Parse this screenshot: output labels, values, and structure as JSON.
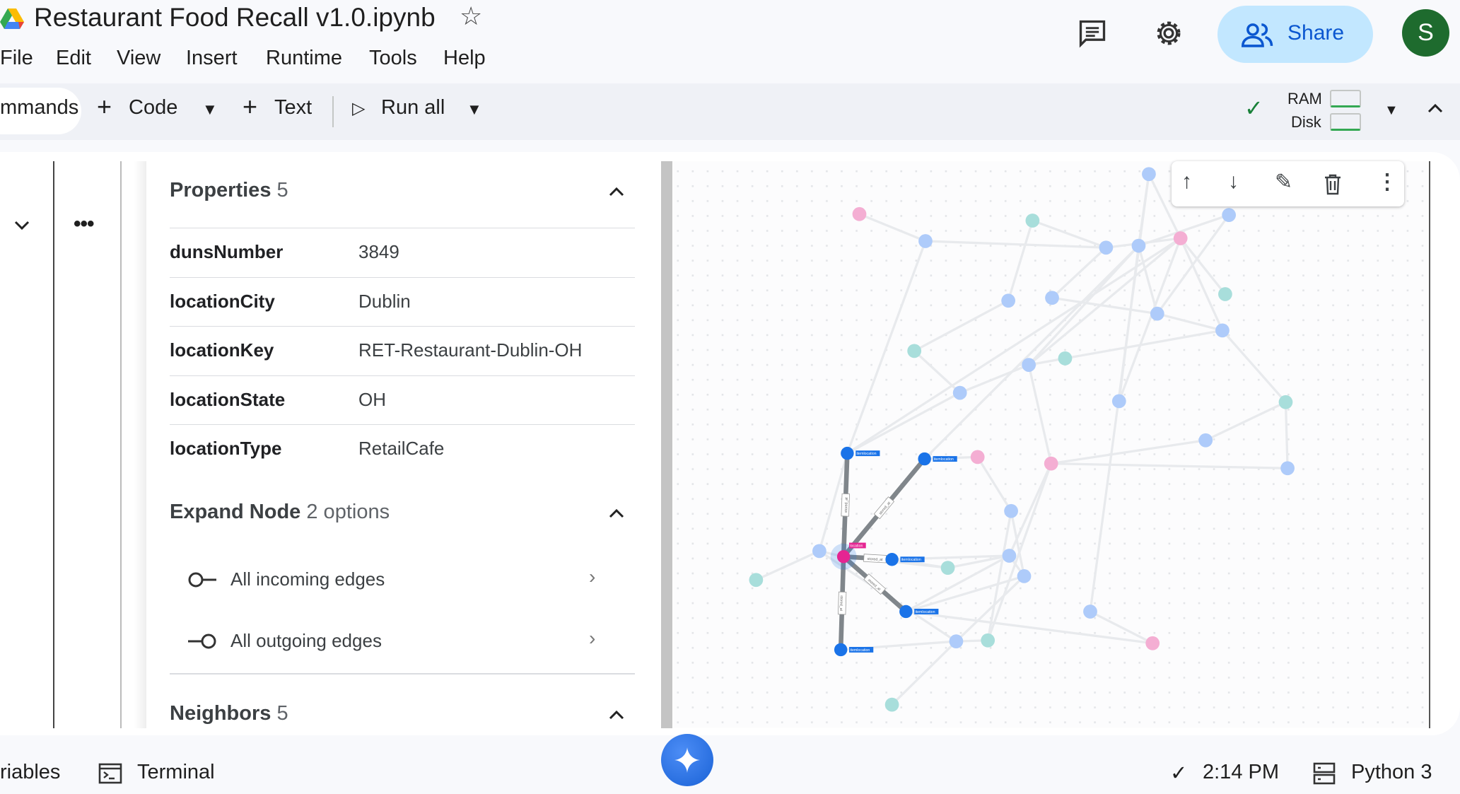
{
  "header": {
    "title": "Restaurant Food Recall v1.0.ipynb",
    "share_label": "Share",
    "avatar_letter": "S"
  },
  "menu": [
    "File",
    "Edit",
    "View",
    "Insert",
    "Runtime",
    "Tools",
    "Help"
  ],
  "toolbar": {
    "commands_label": "mmands",
    "code_label": "Code",
    "text_label": "Text",
    "run_all_label": "Run all",
    "ram_label": "RAM",
    "disk_label": "Disk"
  },
  "properties": {
    "title": "Properties",
    "count": "5",
    "rows": [
      {
        "key": "dunsNumber",
        "value": "3849"
      },
      {
        "key": "locationCity",
        "value": "Dublin"
      },
      {
        "key": "locationKey",
        "value": "RET-Restaurant-Dublin-OH"
      },
      {
        "key": "locationState",
        "value": "OH"
      },
      {
        "key": "locationType",
        "value": "RetailCafe"
      }
    ]
  },
  "expand": {
    "title": "Expand Node",
    "count": "2 options",
    "options": [
      "All incoming edges",
      "All outgoing edges"
    ]
  },
  "neighbors": {
    "title": "Neighbors",
    "count": "5"
  },
  "graph": {
    "center_label": "location",
    "neighbor_label": "itemlocation",
    "edge_label": "stored_at",
    "colors": {
      "item": "#aecbfa",
      "teal": "#a8dedb",
      "pink": "#f4aed3",
      "neighbor": "#1a73e8",
      "center": "#e52592",
      "edge": "#80868b",
      "faint_edge": "#e8eaed"
    }
  },
  "bottom": {
    "variables_label": "riables",
    "terminal_label": "Terminal",
    "time": "2:14 PM",
    "kernel": "Python 3"
  }
}
